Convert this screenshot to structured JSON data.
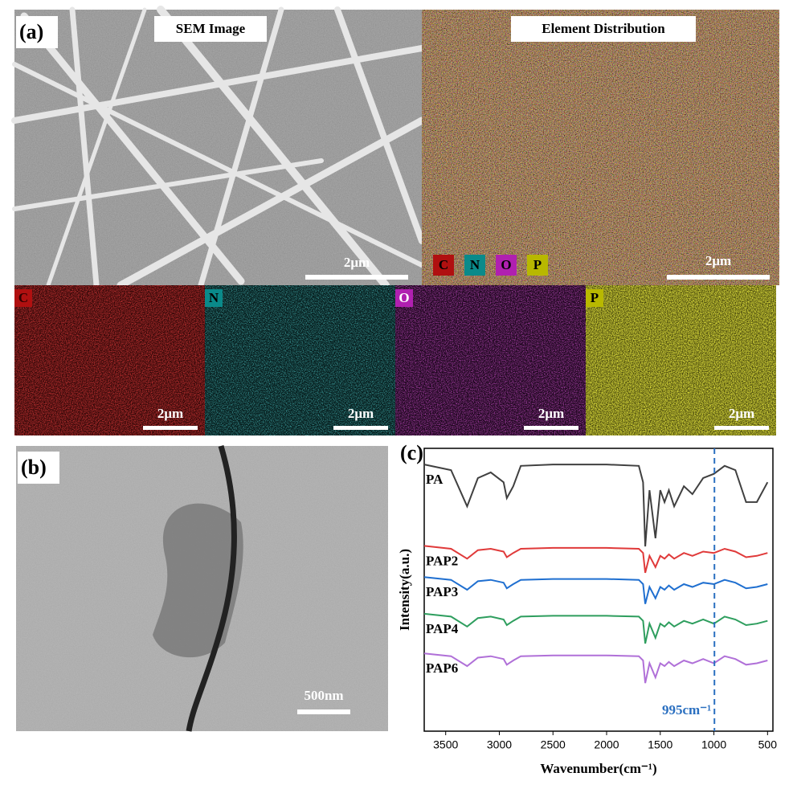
{
  "panel_a": {
    "label": "(a)",
    "sem_title": "SEM Image",
    "eds_title": "Element Distribution",
    "legend": [
      "C",
      "N",
      "O",
      "P"
    ],
    "sem_scale": "2μm",
    "eds_scale": "2μm",
    "maps": [
      {
        "label": "C",
        "scale": "2μm"
      },
      {
        "label": "N",
        "scale": "2μm"
      },
      {
        "label": "O",
        "scale": "2μm"
      },
      {
        "label": "P",
        "scale": "2μm"
      }
    ]
  },
  "panel_b": {
    "label": "(b)",
    "scale": "500nm"
  },
  "chart_data": {
    "type": "line",
    "title": "(c)",
    "xlabel": "Wavenumber(cm⁻¹)",
    "ylabel": "Intensity(a.u.)",
    "x": [
      3700,
      3450,
      3300,
      3200,
      3080,
      2960,
      2930,
      2870,
      2800,
      2500,
      2000,
      1700,
      1660,
      1640,
      1600,
      1545,
      1500,
      1460,
      1420,
      1370,
      1280,
      1200,
      1100,
      1000,
      900,
      800,
      700,
      600,
      500
    ],
    "xlim": [
      3700,
      450
    ],
    "xticks": [
      3500,
      3000,
      2500,
      2000,
      1500,
      1000,
      500
    ],
    "ylim": [
      0,
      100
    ],
    "annotation": {
      "x": 995,
      "label": "995cm⁻¹"
    },
    "series": [
      {
        "name": "PA",
        "color": "#404040",
        "values": [
          94.3,
          92.3,
          79.5,
          89.5,
          91.5,
          88,
          82.4,
          86.6,
          93.8,
          94.3,
          94.3,
          93.8,
          88,
          65.3,
          85.2,
          68.2,
          85.2,
          81,
          85.2,
          79.5,
          86.6,
          83.8,
          89.5,
          91,
          93.8,
          92.3,
          81,
          81,
          88
        ]
      },
      {
        "name": "PAP2",
        "color": "#e03a3a",
        "values": [
          65.5,
          64.5,
          61,
          64,
          64.5,
          63.5,
          61.5,
          63,
          64.5,
          64.8,
          64.8,
          64.5,
          63,
          56,
          62,
          58,
          62,
          61,
          62.5,
          61,
          63,
          62,
          63.5,
          63,
          64.5,
          63.5,
          61.5,
          62,
          63
        ]
      },
      {
        "name": "PAP3",
        "color": "#1f6fd0",
        "values": [
          54.5,
          53.5,
          50,
          53,
          53.5,
          52.5,
          50.5,
          52,
          53.5,
          53.8,
          53.8,
          53.5,
          52,
          45,
          51,
          47,
          51,
          50,
          51.5,
          50,
          52,
          51,
          52.5,
          52,
          53.5,
          52.5,
          50.5,
          51,
          52
        ]
      },
      {
        "name": "PAP4",
        "color": "#2e9e5e",
        "values": [
          41.5,
          40.5,
          37,
          40,
          40.5,
          39.5,
          37.5,
          39,
          40.5,
          40.8,
          40.8,
          40.5,
          39,
          31,
          38,
          33,
          38,
          37,
          38.5,
          37,
          39,
          38,
          39.5,
          38,
          40.5,
          39.5,
          37.5,
          38,
          39
        ]
      },
      {
        "name": "PAP6",
        "color": "#b070d8",
        "values": [
          27.5,
          26.5,
          23,
          26,
          26.5,
          25.5,
          23.5,
          25,
          26.5,
          26.8,
          26.8,
          26.5,
          25,
          17,
          24,
          19,
          24,
          23,
          24.5,
          23,
          25,
          24,
          25.5,
          24,
          26.5,
          25.5,
          23.5,
          24,
          25
        ]
      }
    ]
  }
}
